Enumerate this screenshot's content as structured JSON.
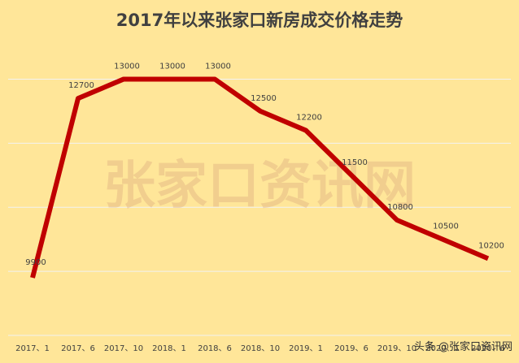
{
  "chart_data": {
    "type": "line",
    "title": "2017年以来张家口新房成交价格走势",
    "categories": [
      "2017、1",
      "2017、6",
      "2017、10",
      "2018、1",
      "2018、6",
      "2018、10",
      "2019、1",
      "2019、6",
      "2019、10",
      "2020、1",
      "2020、6"
    ],
    "series": [
      {
        "values": [
          9900,
          12700,
          13000,
          13000,
          13000,
          12500,
          12200,
          11500,
          10800,
          10500,
          10200
        ]
      }
    ],
    "data_labels": [
      "9900",
      "12700",
      "13000",
      "13000",
      "13000",
      "12500",
      "12200",
      "11500",
      "10800",
      "10500",
      "10200"
    ],
    "ylim": [
      9000,
      13500
    ],
    "grid": true,
    "line_color": "#C00000",
    "xlabel": "",
    "ylabel": ""
  },
  "watermark": {
    "text": "张家口资讯网",
    "footer": "头条 @张家口资讯网"
  }
}
